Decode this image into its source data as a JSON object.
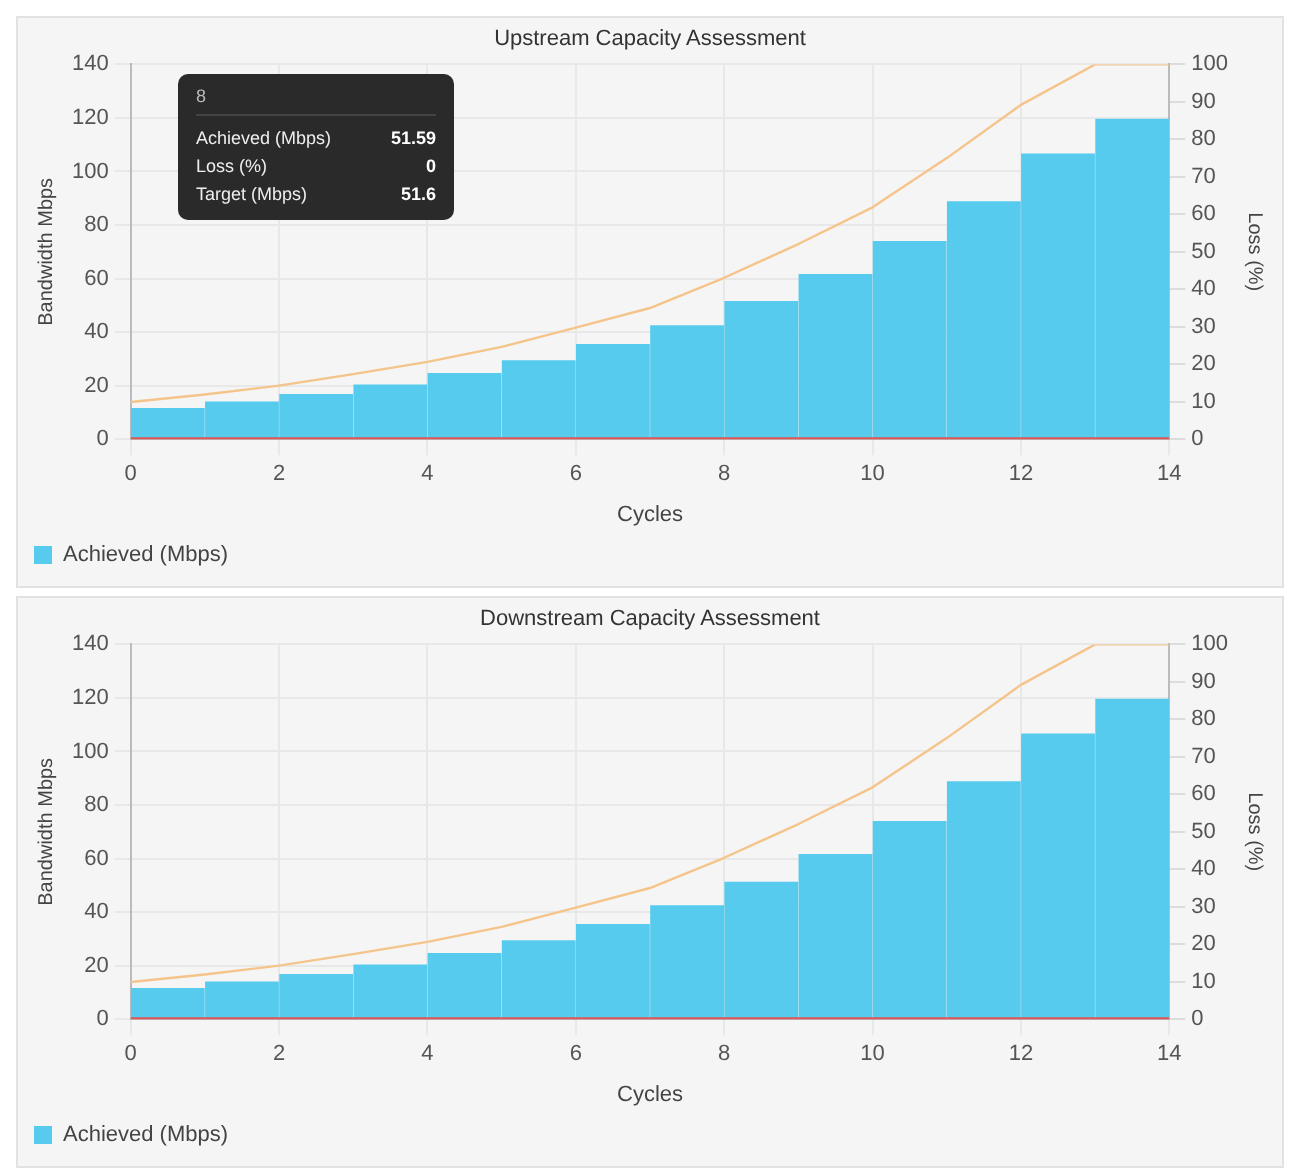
{
  "chart_data": [
    {
      "type": "bar",
      "title": "Upstream Capacity Assessment",
      "xlabel": "Cycles",
      "ylabel": "Bandwidth Mbps",
      "y2label": "Loss (%)",
      "xlim": [
        0,
        14
      ],
      "xticks": [
        0,
        2,
        4,
        6,
        8,
        10,
        12,
        14
      ],
      "ylim": [
        0,
        140
      ],
      "yticks": [
        0,
        20,
        40,
        60,
        80,
        100,
        120,
        140
      ],
      "y2lim": [
        0,
        100
      ],
      "y2ticks": [
        0,
        10,
        20,
        30,
        40,
        50,
        60,
        70,
        80,
        90,
        100
      ],
      "grid": true,
      "legend": "bottom left",
      "annotations": [
        "8",
        "Achieved (Mbps)",
        "51.59",
        "Loss (%)",
        "0",
        "Target (Mbps)",
        "51.6"
      ],
      "series": [
        {
          "name": "Achieved (Mbps)",
          "color": "#56cbee",
          "x": [
            0.5,
            1.5,
            2.5,
            3.5,
            4.5,
            5.5,
            6.5,
            7.5,
            8.5,
            9.5,
            10.5,
            11.5,
            12.5,
            13.5
          ],
          "values": [
            11.7,
            14.1,
            16.9,
            20.4,
            24.7,
            29.5,
            35.6,
            42.6,
            51.59,
            61.7,
            74,
            88.9,
            106.7,
            119.7
          ]
        },
        {
          "type": "line",
          "color": "#f5c48a",
          "x": [
            0,
            1,
            2,
            3,
            4,
            5,
            6,
            7,
            8,
            9,
            10,
            11,
            12,
            13,
            14
          ],
          "values": [
            13.9,
            16.7,
            20,
            24.3,
            28.9,
            34.5,
            41.7,
            49,
            60.3,
            72.9,
            86.6,
            105,
            124.9,
            140,
            140
          ]
        },
        {
          "type": "line",
          "axis": "y2",
          "color": "#e05555",
          "x": [
            0,
            1,
            2,
            3,
            4,
            5,
            6,
            7,
            8,
            9,
            10,
            11,
            12,
            13,
            14
          ],
          "values": [
            0,
            0,
            0,
            0,
            0,
            0,
            0,
            0,
            0,
            0,
            0,
            0,
            0,
            0,
            0
          ]
        }
      ]
    },
    {
      "type": "bar",
      "title": "Downstream Capacity Assessment",
      "xlabel": "Cycles",
      "ylabel": "Bandwidth Mbps",
      "y2label": "Loss (%)",
      "xlim": [
        0,
        14
      ],
      "xticks": [
        0,
        2,
        4,
        6,
        8,
        10,
        12,
        14
      ],
      "ylim": [
        0,
        140
      ],
      "yticks": [
        0,
        20,
        40,
        60,
        80,
        100,
        120,
        140
      ],
      "y2lim": [
        0,
        100
      ],
      "y2ticks": [
        0,
        10,
        20,
        30,
        40,
        50,
        60,
        70,
        80,
        90,
        100
      ],
      "grid": true,
      "legend": "bottom left",
      "series": [
        {
          "name": "Achieved (Mbps)",
          "color": "#56cbee",
          "x": [
            0.5,
            1.5,
            2.5,
            3.5,
            4.5,
            5.5,
            6.5,
            7.5,
            8.5,
            9.5,
            10.5,
            11.5,
            12.5,
            13.5
          ],
          "values": [
            11.7,
            14.1,
            16.9,
            20.4,
            24.7,
            29.5,
            35.6,
            42.6,
            51.3,
            61.7,
            74,
            88.9,
            106.7,
            119.7
          ]
        },
        {
          "type": "line",
          "color": "#f5c48a",
          "x": [
            0,
            1,
            2,
            3,
            4,
            5,
            6,
            7,
            8,
            9,
            10,
            11,
            12,
            13,
            14
          ],
          "values": [
            13.9,
            16.7,
            20,
            24.3,
            28.9,
            34.5,
            41.7,
            49,
            60.3,
            72.9,
            86.6,
            105,
            124.9,
            140,
            140
          ]
        },
        {
          "type": "line",
          "axis": "y2",
          "color": "#e05555",
          "x": [
            0,
            1,
            2,
            3,
            4,
            5,
            6,
            7,
            8,
            9,
            10,
            11,
            12,
            13,
            14
          ],
          "values": [
            0,
            0,
            0,
            0,
            0,
            0,
            0,
            0,
            0,
            0,
            0,
            0,
            0,
            0,
            0
          ]
        }
      ]
    }
  ]
}
